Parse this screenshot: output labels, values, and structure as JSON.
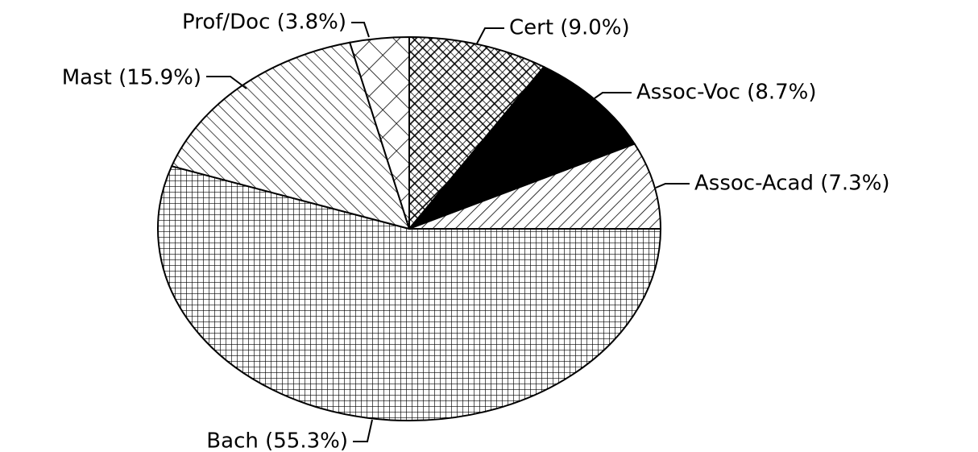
{
  "chart_data": {
    "type": "pie",
    "values": [
      9.0,
      8.7,
      7.3,
      55.3,
      15.9,
      3.8
    ],
    "value_labels": [
      "Cert (9.0%)",
      "Assoc-Voc (8.7%)",
      "Assoc-Acad (7.3%)",
      "Bach (55.3%)",
      "Mast (15.9%)",
      "Prof/Doc (3.8%)"
    ],
    "patterns": [
      "dense-crosshatch",
      "solid",
      "back-diagonal",
      "grid",
      "diagonal",
      "crosshatch"
    ],
    "color": "#000000"
  }
}
